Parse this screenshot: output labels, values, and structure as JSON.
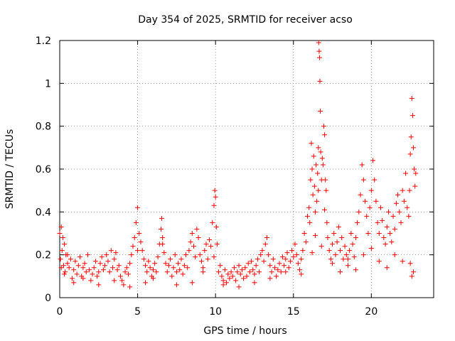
{
  "chart_data": {
    "type": "scatter",
    "title": "Day 354 of 2025, SRMTID for receiver acso",
    "xlabel": "GPS time / hours",
    "ylabel": "SRMTID / TECUs",
    "xlim": [
      0,
      24
    ],
    "ylim": [
      0,
      1.2
    ],
    "xticks": [
      0,
      5,
      10,
      15,
      20
    ],
    "xtick_labels": [
      "0",
      "5",
      "10",
      "15",
      "20"
    ],
    "yticks": [
      0,
      0.2,
      0.4,
      0.6,
      0.8,
      1,
      1.2
    ],
    "ytick_labels": [
      "0",
      "0.2",
      "0.4",
      "0.6",
      "0.8",
      "1",
      "1.2"
    ],
    "grid": true,
    "marker": "+",
    "series": [
      {
        "name": "SRMTID",
        "color": "#ff0000",
        "x": [
          0.0,
          0.05,
          0.1,
          0.15,
          0.2,
          0.25,
          0.3,
          0.35,
          0.4,
          0.5,
          0.6,
          0.7,
          0.8,
          0.9,
          1.0,
          1.1,
          1.2,
          1.3,
          1.4,
          1.5,
          1.6,
          1.7,
          1.8,
          1.9,
          2.0,
          2.1,
          2.2,
          2.3,
          2.4,
          2.5,
          2.6,
          2.7,
          2.8,
          2.9,
          3.0,
          3.1,
          3.2,
          3.3,
          3.4,
          3.5,
          3.6,
          3.7,
          3.8,
          3.9,
          4.0,
          4.1,
          4.2,
          4.3,
          4.4,
          4.5,
          4.6,
          4.7,
          4.8,
          4.9,
          5.0,
          5.1,
          5.2,
          5.3,
          5.4,
          5.5,
          5.6,
          5.7,
          5.8,
          5.9,
          6.0,
          6.1,
          6.2,
          6.3,
          6.4,
          6.5,
          6.55,
          6.6,
          6.7,
          6.8,
          6.9,
          7.0,
          7.1,
          7.2,
          7.3,
          7.4,
          7.5,
          7.6,
          7.7,
          7.8,
          7.9,
          8.0,
          8.1,
          8.2,
          8.3,
          8.4,
          8.5,
          8.6,
          8.7,
          8.8,
          8.9,
          9.0,
          9.1,
          9.2,
          9.3,
          9.4,
          9.5,
          9.6,
          9.7,
          9.8,
          9.9,
          9.95,
          10.0,
          10.05,
          10.1,
          10.2,
          10.3,
          10.4,
          10.5,
          10.6,
          10.7,
          10.8,
          10.9,
          11.0,
          11.1,
          11.2,
          11.3,
          11.4,
          11.5,
          11.6,
          11.7,
          11.8,
          11.9,
          12.0,
          12.1,
          12.2,
          12.3,
          12.4,
          12.5,
          12.6,
          12.7,
          12.8,
          12.9,
          13.0,
          13.1,
          13.2,
          13.3,
          13.4,
          13.5,
          13.6,
          13.7,
          13.8,
          13.9,
          14.0,
          14.1,
          14.2,
          14.3,
          14.4,
          14.5,
          14.6,
          14.7,
          14.8,
          14.9,
          15.0,
          15.1,
          15.2,
          15.3,
          15.4,
          15.5,
          15.6,
          15.7,
          15.8,
          15.9,
          16.0,
          16.05,
          16.1,
          16.15,
          16.2,
          16.25,
          16.3,
          16.35,
          16.4,
          16.45,
          16.5,
          16.55,
          16.6,
          16.62,
          16.65,
          16.68,
          16.7,
          16.72,
          16.75,
          16.8,
          16.85,
          16.9,
          16.95,
          17.0,
          17.05,
          17.1,
          17.15,
          17.2,
          17.3,
          17.4,
          17.5,
          17.6,
          17.7,
          17.8,
          17.9,
          18.0,
          18.1,
          18.2,
          18.3,
          18.4,
          18.5,
          18.6,
          18.7,
          18.8,
          18.9,
          19.0,
          19.1,
          19.2,
          19.3,
          19.4,
          19.5,
          19.6,
          19.7,
          19.8,
          19.9,
          20.0,
          20.1,
          20.2,
          20.3,
          20.4,
          20.5,
          20.6,
          20.7,
          20.8,
          20.9,
          21.0,
          21.1,
          21.2,
          21.3,
          21.4,
          21.5,
          21.6,
          21.7,
          21.8,
          21.9,
          22.0,
          22.1,
          22.2,
          22.3,
          22.4,
          22.45,
          22.5,
          22.55,
          22.6,
          22.65,
          22.7,
          22.75,
          22.8,
          22.85,
          0.1,
          0.3,
          0.5,
          0.9,
          1.5,
          2.5,
          3.5,
          4.5,
          5.0,
          5.5,
          6.0,
          6.6,
          7.5,
          8.5,
          9.2,
          9.9,
          10.5,
          11.5,
          12.5,
          13.5,
          14.5,
          15.5,
          16.2,
          16.4,
          16.6,
          16.8,
          17.0,
          17.5,
          18.0,
          18.5,
          19.0,
          19.5,
          20.0,
          20.5,
          21.0,
          21.5,
          22.0,
          22.5,
          22.6,
          22.7
        ],
        "y": [
          0.3,
          0.18,
          0.33,
          0.22,
          0.28,
          0.15,
          0.25,
          0.12,
          0.2,
          0.16,
          0.14,
          0.18,
          0.09,
          0.13,
          0.17,
          0.11,
          0.15,
          0.19,
          0.1,
          0.14,
          0.16,
          0.12,
          0.2,
          0.13,
          0.08,
          0.11,
          0.14,
          0.17,
          0.1,
          0.12,
          0.16,
          0.19,
          0.13,
          0.15,
          0.2,
          0.17,
          0.12,
          0.22,
          0.14,
          0.18,
          0.21,
          0.13,
          0.15,
          0.1,
          0.08,
          0.06,
          0.12,
          0.14,
          0.11,
          0.16,
          0.2,
          0.24,
          0.28,
          0.35,
          0.42,
          0.3,
          0.26,
          0.22,
          0.18,
          0.15,
          0.12,
          0.17,
          0.14,
          0.1,
          0.13,
          0.16,
          0.12,
          0.19,
          0.25,
          0.32,
          0.37,
          0.28,
          0.21,
          0.16,
          0.12,
          0.15,
          0.18,
          0.1,
          0.14,
          0.2,
          0.12,
          0.16,
          0.13,
          0.18,
          0.11,
          0.15,
          0.2,
          0.14,
          0.22,
          0.26,
          0.3,
          0.24,
          0.19,
          0.32,
          0.28,
          0.2,
          0.17,
          0.14,
          0.22,
          0.25,
          0.18,
          0.27,
          0.24,
          0.35,
          0.43,
          0.5,
          0.47,
          0.33,
          0.25,
          0.12,
          0.15,
          0.1,
          0.08,
          0.13,
          0.07,
          0.11,
          0.09,
          0.12,
          0.1,
          0.14,
          0.08,
          0.12,
          0.15,
          0.11,
          0.13,
          0.09,
          0.14,
          0.1,
          0.16,
          0.12,
          0.17,
          0.13,
          0.11,
          0.15,
          0.18,
          0.12,
          0.2,
          0.22,
          0.17,
          0.25,
          0.28,
          0.2,
          0.15,
          0.12,
          0.18,
          0.14,
          0.1,
          0.13,
          0.16,
          0.12,
          0.19,
          0.15,
          0.18,
          0.21,
          0.14,
          0.17,
          0.22,
          0.19,
          0.25,
          0.2,
          0.16,
          0.13,
          0.18,
          0.22,
          0.3,
          0.26,
          0.38,
          0.42,
          0.35,
          0.55,
          0.72,
          0.6,
          0.48,
          0.66,
          0.52,
          0.4,
          0.62,
          0.45,
          0.58,
          0.7,
          1.19,
          1.15,
          1.12,
          1.01,
          0.87,
          0.68,
          0.55,
          0.65,
          0.62,
          0.8,
          0.76,
          0.55,
          0.5,
          0.35,
          0.28,
          0.22,
          0.18,
          0.25,
          0.3,
          0.2,
          0.26,
          0.33,
          0.22,
          0.28,
          0.18,
          0.24,
          0.2,
          0.15,
          0.22,
          0.3,
          0.25,
          0.19,
          0.28,
          0.35,
          0.4,
          0.48,
          0.62,
          0.55,
          0.45,
          0.38,
          0.3,
          0.42,
          0.5,
          0.64,
          0.55,
          0.45,
          0.35,
          0.3,
          0.42,
          0.36,
          0.28,
          0.25,
          0.33,
          0.4,
          0.3,
          0.26,
          0.38,
          0.32,
          0.44,
          0.48,
          0.4,
          0.35,
          0.5,
          0.45,
          0.58,
          0.42,
          0.38,
          0.5,
          0.67,
          0.75,
          0.93,
          0.85,
          0.7,
          0.6,
          0.52,
          0.58,
          0.14,
          0.11,
          0.2,
          0.07,
          0.09,
          0.06,
          0.08,
          0.05,
          0.22,
          0.07,
          0.09,
          0.25,
          0.06,
          0.07,
          0.12,
          0.19,
          0.06,
          0.05,
          0.07,
          0.09,
          0.12,
          0.11,
          0.21,
          0.29,
          0.5,
          0.24,
          0.41,
          0.16,
          0.12,
          0.18,
          0.13,
          0.2,
          0.23,
          0.17,
          0.14,
          0.2,
          0.17,
          0.16,
          0.1,
          0.12
        ]
      }
    ]
  }
}
